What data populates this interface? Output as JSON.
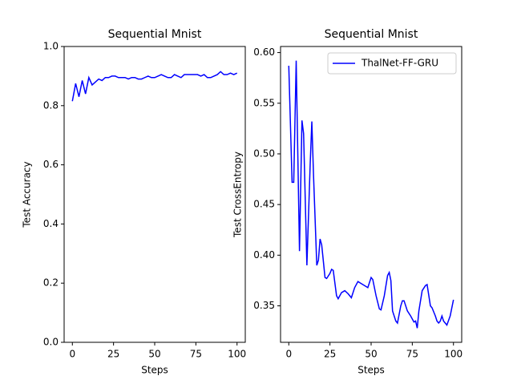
{
  "chart_data": [
    {
      "type": "line",
      "title": "Sequential Mnist",
      "x_label": "Steps",
      "y_label": "Test Accuracy",
      "x": [
        0,
        2,
        4,
        6,
        8,
        10,
        12,
        14,
        16,
        18,
        20,
        22,
        24,
        26,
        28,
        30,
        32,
        34,
        36,
        38,
        40,
        42,
        44,
        46,
        48,
        50,
        52,
        54,
        56,
        58,
        60,
        62,
        64,
        66,
        68,
        70,
        72,
        74,
        76,
        78,
        80,
        82,
        84,
        86,
        88,
        90,
        92,
        94,
        96,
        98,
        100
      ],
      "series": [
        {
          "color": "#0000ff",
          "values": [
            0.815,
            0.875,
            0.83,
            0.885,
            0.84,
            0.895,
            0.87,
            0.88,
            0.89,
            0.885,
            0.895,
            0.895,
            0.9,
            0.9,
            0.895,
            0.895,
            0.895,
            0.89,
            0.895,
            0.895,
            0.89,
            0.89,
            0.895,
            0.9,
            0.895,
            0.895,
            0.9,
            0.905,
            0.9,
            0.895,
            0.895,
            0.905,
            0.9,
            0.895,
            0.905,
            0.905,
            0.905,
            0.905,
            0.905,
            0.9,
            0.905,
            0.895,
            0.895,
            0.9,
            0.905,
            0.915,
            0.905,
            0.905,
            0.91,
            0.905,
            0.91
          ]
        }
      ],
      "xlim": [
        -5,
        105
      ],
      "xticks": [
        0,
        25,
        50,
        75,
        100
      ],
      "ylim": [
        0,
        1
      ],
      "yticks": [
        {
          "value": 0,
          "label": "0.0"
        },
        0.2,
        0.4,
        0.6,
        0.8,
        {
          "value": 1,
          "label": "1.0"
        }
      ]
    },
    {
      "type": "line",
      "title": "Sequential Mnist",
      "x_label": "Steps",
      "y_label": "Test CrossEntropy",
      "legend": "upper right",
      "x": [
        0,
        2,
        3,
        4.5,
        6.5,
        8,
        9,
        11,
        13,
        14,
        15,
        17,
        18,
        19,
        20,
        22,
        23,
        25,
        26,
        27,
        29,
        30,
        32,
        34,
        36,
        38,
        40,
        42,
        44,
        46,
        48,
        50,
        51,
        53,
        55,
        56,
        58,
        60,
        61,
        62,
        63,
        65,
        66,
        68,
        69,
        70,
        72,
        74,
        76,
        77,
        78,
        79,
        81,
        83,
        84,
        86,
        87,
        89,
        90,
        91,
        92,
        93,
        94,
        96,
        98,
        100
      ],
      "series": [
        {
          "name": "ThalNet-FF-GRU",
          "color": "#0000ff",
          "values": [
            0.587,
            0.472,
            0.472,
            0.592,
            0.404,
            0.533,
            0.52,
            0.39,
            0.49,
            0.532,
            0.48,
            0.39,
            0.395,
            0.416,
            0.41,
            0.378,
            0.377,
            0.382,
            0.386,
            0.385,
            0.36,
            0.357,
            0.363,
            0.365,
            0.362,
            0.358,
            0.368,
            0.374,
            0.372,
            0.37,
            0.368,
            0.378,
            0.376,
            0.36,
            0.347,
            0.346,
            0.36,
            0.38,
            0.383,
            0.375,
            0.345,
            0.335,
            0.333,
            0.35,
            0.355,
            0.355,
            0.345,
            0.34,
            0.334,
            0.335,
            0.328,
            0.345,
            0.365,
            0.37,
            0.371,
            0.35,
            0.348,
            0.34,
            0.335,
            0.333,
            0.335,
            0.34,
            0.335,
            0.331,
            0.34,
            0.356
          ]
        }
      ],
      "xlim": [
        -5,
        105
      ],
      "xticks": [
        0,
        25,
        50,
        75,
        100
      ],
      "ylim": [
        0.314,
        0.606
      ],
      "yticks": [
        0.35,
        {
          "value": 0.4,
          "label": "0.40"
        },
        0.45,
        {
          "value": 0.5,
          "label": "0.50"
        },
        0.55,
        {
          "value": 0.6,
          "label": "0.60"
        }
      ]
    }
  ]
}
